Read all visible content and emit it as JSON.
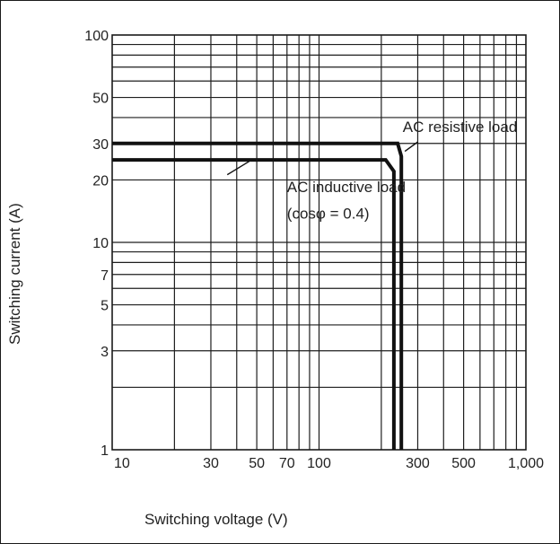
{
  "chart_data": {
    "type": "line",
    "title": "",
    "xlabel": "Switching voltage (V)",
    "ylabel": "Switching current (A)",
    "xscale": "log",
    "yscale": "log",
    "xlim": [
      10,
      1000
    ],
    "ylim": [
      1,
      100
    ],
    "x_ticks": [
      {
        "value": 10,
        "label": "10"
      },
      {
        "value": 30,
        "label": "30"
      },
      {
        "value": 50,
        "label": "50"
      },
      {
        "value": 70,
        "label": "70"
      },
      {
        "value": 100,
        "label": "100"
      },
      {
        "value": 300,
        "label": "300"
      },
      {
        "value": 500,
        "label": "500"
      },
      {
        "value": 1000,
        "label": "1,000"
      }
    ],
    "y_ticks": [
      {
        "value": 1,
        "label": "1"
      },
      {
        "value": 3,
        "label": "3"
      },
      {
        "value": 5,
        "label": "5"
      },
      {
        "value": 7,
        "label": "7"
      },
      {
        "value": 10,
        "label": "10"
      },
      {
        "value": 20,
        "label": "20"
      },
      {
        "value": 30,
        "label": "30"
      },
      {
        "value": 50,
        "label": "50"
      },
      {
        "value": 100,
        "label": "100"
      }
    ],
    "grid": true,
    "series": [
      {
        "name": "AC resistive load",
        "points": [
          [
            10,
            30
          ],
          [
            240,
            30
          ],
          [
            250,
            26
          ],
          [
            250,
            1
          ]
        ]
      },
      {
        "name": "AC inductive load",
        "points": [
          [
            10,
            25
          ],
          [
            210,
            25
          ],
          [
            230,
            22
          ],
          [
            230,
            1
          ]
        ]
      }
    ],
    "annotations": [
      {
        "text": "AC resistive load",
        "x": 480,
        "y": 34
      },
      {
        "text": "AC inductive load",
        "x": 70,
        "y": 17.5
      },
      {
        "text": "(cosφ  =  0.4)",
        "x": 70,
        "y": 13
      }
    ]
  }
}
